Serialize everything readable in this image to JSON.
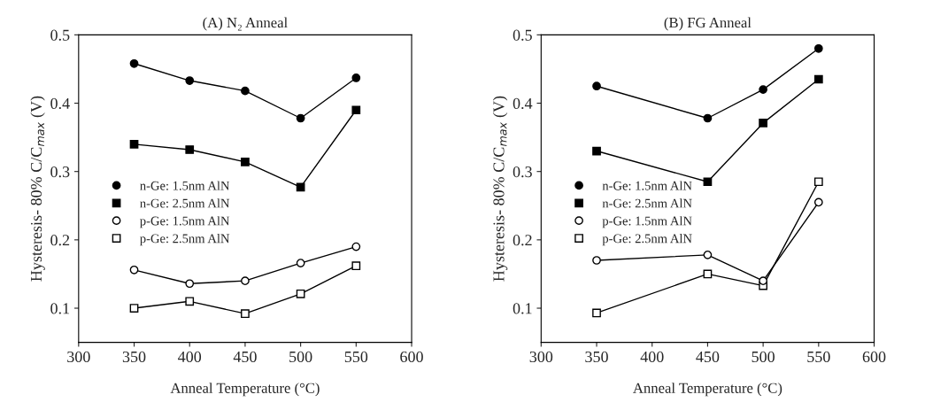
{
  "chart_data": [
    {
      "type": "line",
      "title": "(A) N₂ Anneal",
      "xlabel": "Anneal Temperature (°C)",
      "ylabel": "Hysteresis- 80% C/C$_{max}$ (V)",
      "x": [
        350,
        400,
        450,
        500,
        550
      ],
      "xlim": [
        300,
        600
      ],
      "xticks": [
        300,
        350,
        400,
        450,
        500,
        550,
        600
      ],
      "ylim": [
        0.05,
        0.5
      ],
      "yticks": [
        0.1,
        0.2,
        0.3,
        0.4,
        0.5
      ],
      "grid": false,
      "legend": "left",
      "series": [
        {
          "name": "n-Ge: 1.5nm AlN",
          "color": "#000000",
          "marker": "circle",
          "values": [
            0.458,
            0.433,
            0.418,
            0.378,
            0.437
          ]
        },
        {
          "name": "n-Ge: 2.5nm AlN",
          "color": "#000000",
          "marker": "square",
          "values": [
            0.34,
            0.332,
            0.314,
            0.277,
            0.39
          ]
        },
        {
          "name": "p-Ge: 1.5nm AlN",
          "color": "#ffffff",
          "marker": "circle",
          "values": [
            0.156,
            0.136,
            0.14,
            0.166,
            0.19
          ]
        },
        {
          "name": "p-Ge: 2.5nm AlN",
          "color": "#ffffff",
          "marker": "square",
          "values": [
            0.1,
            0.11,
            0.092,
            0.121,
            0.162
          ]
        }
      ]
    },
    {
      "type": "line",
      "title": "(B) FG Anneal",
      "xlabel": "Anneal Temperature (°C)",
      "ylabel": "Hysteresis- 80% C/C$_{max}$ (V)",
      "x": [
        350,
        450,
        500,
        550
      ],
      "xlim": [
        300,
        600
      ],
      "xticks": [
        300,
        350,
        400,
        450,
        500,
        550,
        600
      ],
      "ylim": [
        0.05,
        0.5
      ],
      "yticks": [
        0.1,
        0.2,
        0.3,
        0.4,
        0.5
      ],
      "grid": false,
      "legend": "left",
      "series": [
        {
          "name": "n-Ge: 1.5nm AlN",
          "color": "#000000",
          "marker": "circle",
          "values": [
            0.425,
            0.378,
            0.42,
            0.48
          ]
        },
        {
          "name": "n-Ge: 2.5nm AlN",
          "color": "#000000",
          "marker": "square",
          "values": [
            0.33,
            0.285,
            0.371,
            0.435
          ]
        },
        {
          "name": "p-Ge: 1.5nm AlN",
          "color": "#ffffff",
          "marker": "circle",
          "values": [
            0.17,
            0.178,
            0.14,
            0.255
          ]
        },
        {
          "name": "p-Ge: 2.5nm AlN",
          "color": "#ffffff",
          "marker": "square",
          "values": [
            0.093,
            0.15,
            0.133,
            0.285
          ]
        }
      ]
    }
  ]
}
